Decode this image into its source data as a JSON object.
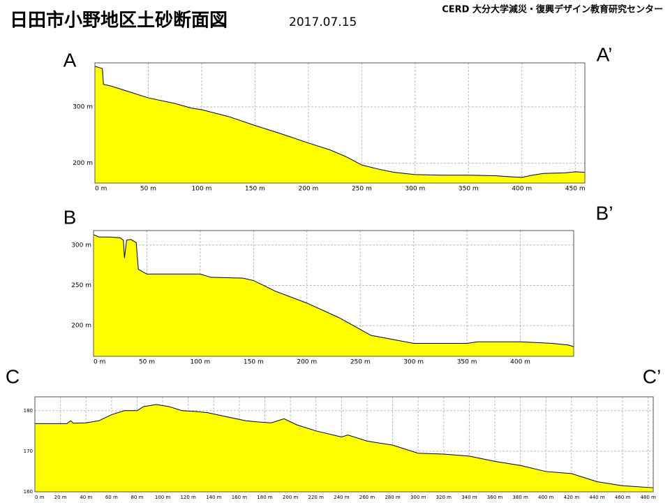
{
  "header": {
    "title": "日田市小野地区土砂断面図",
    "date": "2017.07.15",
    "org": "CERD 大分大学減災・復興デザイン教育研究センター"
  },
  "chart_data": [
    {
      "type": "area",
      "start_label": "A",
      "end_label": "A’",
      "color": "#ffff00",
      "grid": true,
      "x": [
        0,
        7,
        8,
        15,
        30,
        50,
        75,
        90,
        100,
        125,
        150,
        175,
        200,
        220,
        235,
        250,
        265,
        280,
        300,
        325,
        350,
        375,
        390,
        400,
        410,
        420,
        440,
        450,
        459
      ],
      "values": [
        372,
        368,
        340,
        337,
        328,
        316,
        306,
        298,
        295,
        283,
        267,
        252,
        236,
        224,
        212,
        197,
        190,
        184,
        180,
        179,
        179,
        178,
        176,
        175,
        179,
        182,
        183,
        185,
        184
      ],
      "xlim": [
        0,
        459
      ],
      "ylim": [
        165,
        378
      ],
      "xticks": [
        {
          "value": 0,
          "label": "0 m"
        },
        {
          "value": 50,
          "label": "50 m"
        },
        {
          "value": 100,
          "label": "100 m"
        },
        {
          "value": 150,
          "label": "150 m"
        },
        {
          "value": 200,
          "label": "200 m"
        },
        {
          "value": 250,
          "label": "250 m"
        },
        {
          "value": 300,
          "label": "300 m"
        },
        {
          "value": 350,
          "label": "350 m"
        },
        {
          "value": 400,
          "label": "400 m"
        },
        {
          "value": 450,
          "label": "450 m"
        }
      ],
      "yticks": [
        {
          "value": 200,
          "label": "200 m"
        },
        {
          "value": 300,
          "label": "300 m"
        }
      ]
    },
    {
      "type": "area",
      "start_label": "B",
      "end_label": "B’",
      "color": "#ffff00",
      "grid": true,
      "x": [
        0,
        5,
        15,
        25,
        28,
        29,
        31,
        35,
        40,
        42,
        50,
        100,
        110,
        140,
        150,
        170,
        200,
        230,
        260,
        280,
        300,
        350,
        360,
        400,
        430,
        445,
        450
      ],
      "values": [
        313,
        310,
        310,
        309,
        306,
        284,
        306,
        307,
        303,
        270,
        264,
        264,
        260,
        259,
        256,
        243,
        228,
        210,
        188,
        183,
        178,
        178,
        180,
        180,
        178,
        176,
        174
      ],
      "xlim": [
        0,
        450
      ],
      "ylim": [
        162,
        318
      ],
      "xticks": [
        {
          "value": 0,
          "label": "0 m"
        },
        {
          "value": 50,
          "label": "50 m"
        },
        {
          "value": 100,
          "label": "100 m"
        },
        {
          "value": 150,
          "label": "150 m"
        },
        {
          "value": 200,
          "label": "200 m"
        },
        {
          "value": 250,
          "label": "250 m"
        },
        {
          "value": 300,
          "label": "300 m"
        },
        {
          "value": 350,
          "label": "350 m"
        },
        {
          "value": 400,
          "label": "400 m"
        }
      ],
      "yticks": [
        {
          "value": 200,
          "label": "200 m"
        },
        {
          "value": 250,
          "label": "250 m"
        },
        {
          "value": 300,
          "label": "300 m"
        }
      ]
    },
    {
      "type": "area",
      "start_label": "C",
      "end_label": "C’",
      "color": "#ffff00",
      "grid": true,
      "x": [
        0,
        25,
        28,
        30,
        40,
        50,
        60,
        70,
        80,
        85,
        95,
        105,
        115,
        125,
        135,
        150,
        165,
        175,
        185,
        195,
        205,
        220,
        240,
        245,
        260,
        280,
        300,
        320,
        340,
        360,
        380,
        400,
        420,
        440,
        460,
        484
      ],
      "values": [
        176.8,
        176.8,
        177.5,
        176.9,
        177,
        177.5,
        179,
        180,
        180,
        181,
        181.5,
        181,
        180,
        179.8,
        179.5,
        178.5,
        177.5,
        177.2,
        177,
        178,
        176.5,
        175,
        173.5,
        174,
        172.5,
        171.5,
        169.5,
        169.3,
        168.8,
        167.5,
        166.5,
        165,
        164.5,
        162.5,
        161.5,
        161
      ],
      "xlim": [
        0,
        484
      ],
      "ylim": [
        160,
        183.4
      ],
      "xticks": [
        {
          "value": 0,
          "label": "0 m"
        },
        {
          "value": 20,
          "label": "20 m"
        },
        {
          "value": 40,
          "label": "40 m"
        },
        {
          "value": 60,
          "label": "60 m"
        },
        {
          "value": 80,
          "label": "80 m"
        },
        {
          "value": 100,
          "label": "100 m"
        },
        {
          "value": 120,
          "label": "120 m"
        },
        {
          "value": 140,
          "label": "140 m"
        },
        {
          "value": 160,
          "label": "160 m"
        },
        {
          "value": 180,
          "label": "180 m"
        },
        {
          "value": 200,
          "label": "200 m"
        },
        {
          "value": 220,
          "label": "220 m"
        },
        {
          "value": 240,
          "label": "240 m"
        },
        {
          "value": 260,
          "label": "260 m"
        },
        {
          "value": 280,
          "label": "280 m"
        },
        {
          "value": 300,
          "label": "300 m"
        },
        {
          "value": 320,
          "label": "320 m"
        },
        {
          "value": 340,
          "label": "340 m"
        },
        {
          "value": 360,
          "label": "360 m"
        },
        {
          "value": 380,
          "label": "380 m"
        },
        {
          "value": 400,
          "label": "400 m"
        },
        {
          "value": 420,
          "label": "420 m"
        },
        {
          "value": 440,
          "label": "440 m"
        },
        {
          "value": 460,
          "label": "460 m"
        },
        {
          "value": 480,
          "label": "480 m"
        }
      ],
      "yticks": [
        160,
        170,
        180
      ]
    }
  ]
}
